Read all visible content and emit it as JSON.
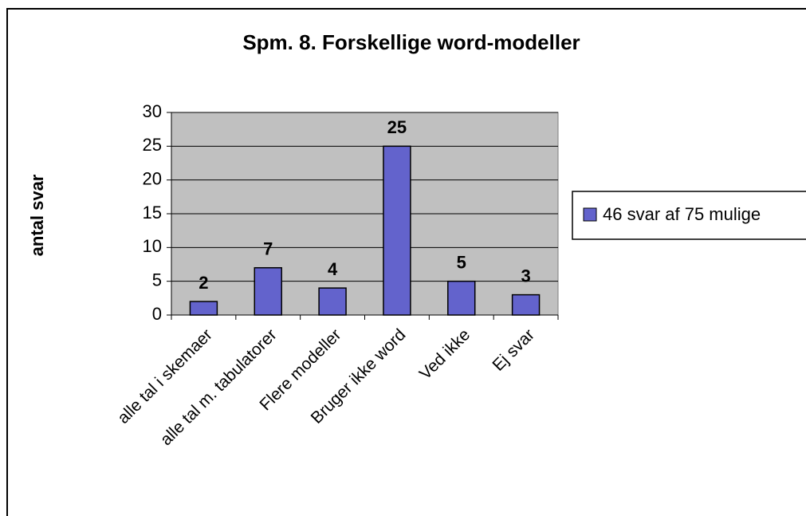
{
  "chart_data": {
    "type": "bar",
    "title": "Spm. 8. Forskellige word-modeller",
    "y_label": "antal svar",
    "categories": [
      "alle tal i skemaer",
      "alle tal m. tabulatorer",
      "Flere modeller",
      "Bruger ikke word",
      "Ved ikke",
      "Ej svar"
    ],
    "series": [
      {
        "name": "46 svar af 75 mulige",
        "color": "#6363cc",
        "values": [
          2,
          7,
          4,
          25,
          5,
          3
        ]
      }
    ],
    "ylim": [
      0,
      30
    ],
    "yticks": [
      0,
      5,
      10,
      15,
      20,
      25,
      30
    ],
    "grid": true,
    "legend": "right"
  }
}
